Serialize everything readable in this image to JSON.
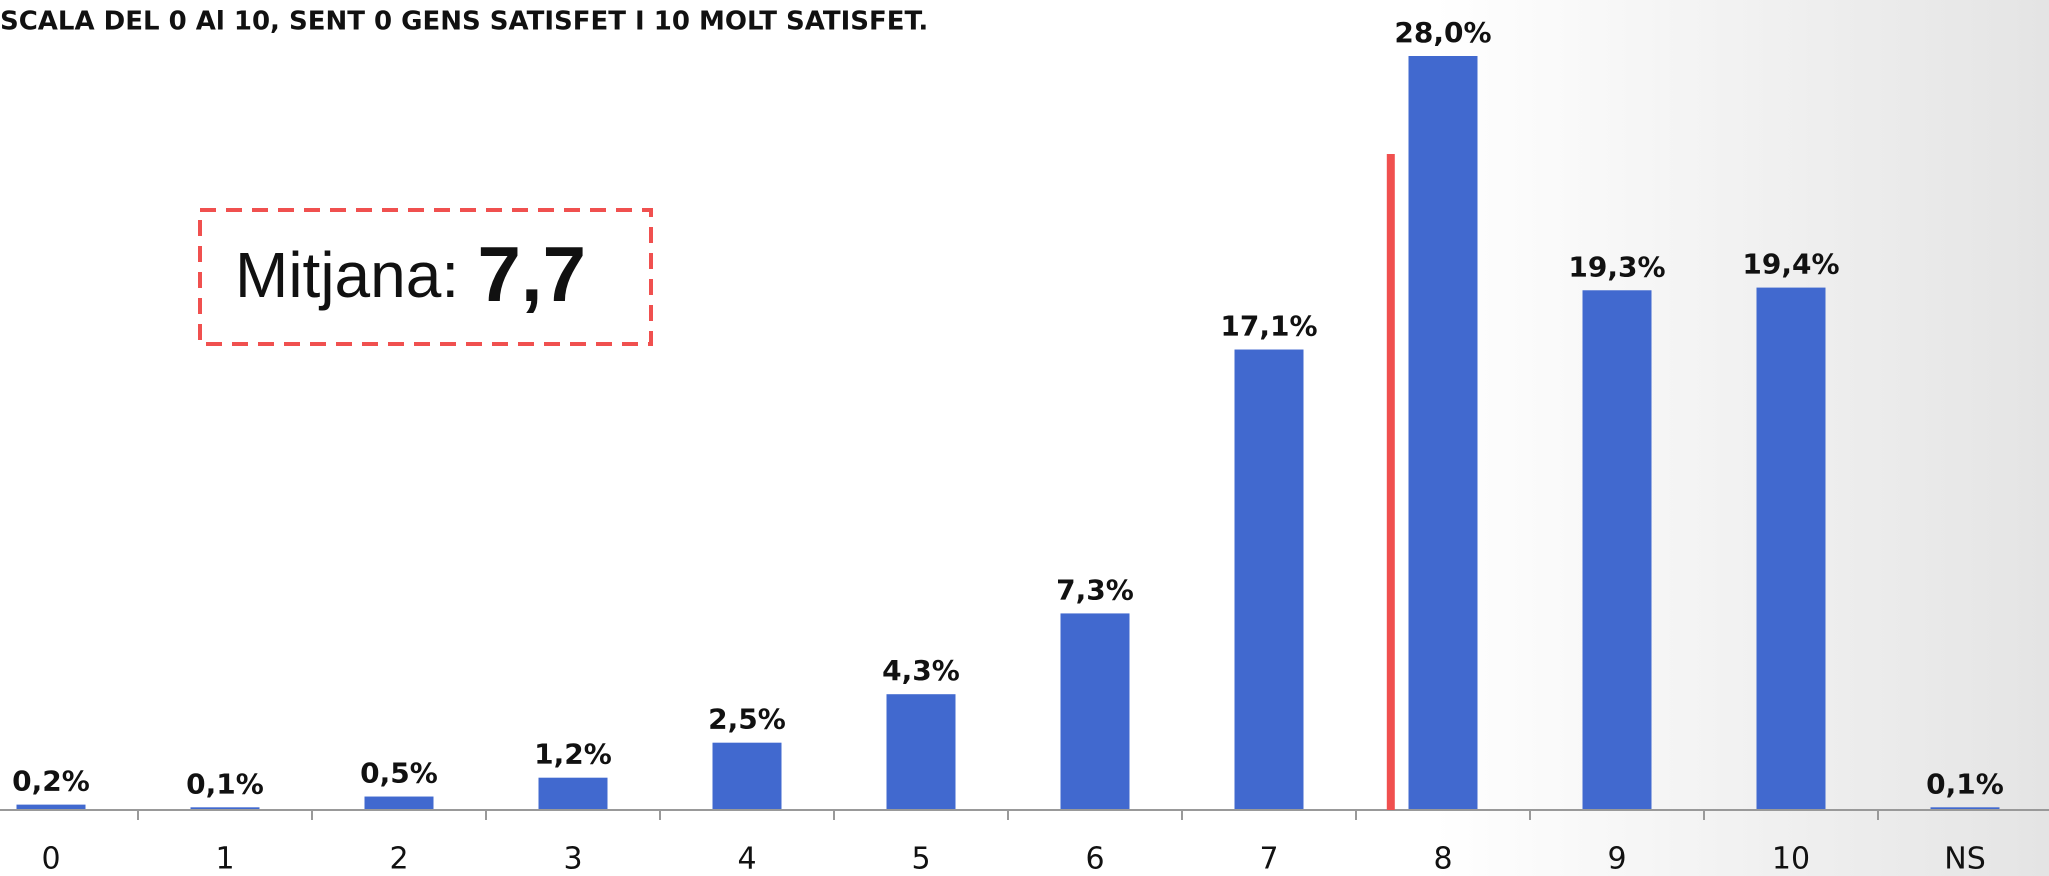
{
  "chart_data": {
    "type": "bar",
    "title": "SCALA DEL 0 Al 10, SENT 0 GENS SATISFET I 10 MOLT SATISFET.",
    "categories": [
      "0",
      "1",
      "2",
      "3",
      "4",
      "5",
      "6",
      "7",
      "8",
      "9",
      "10",
      "NS"
    ],
    "values": [
      0.2,
      0.1,
      0.5,
      1.2,
      2.5,
      4.3,
      7.3,
      17.1,
      28.0,
      19.3,
      19.4,
      0.1
    ],
    "value_labels": [
      "0,2%",
      "0,1%",
      "0,5%",
      "1,2%",
      "2,5%",
      "4,3%",
      "7,3%",
      "17,1%",
      "28,0%",
      "19,3%",
      "19,4%",
      "0,1%"
    ],
    "color": "#4169cf",
    "mean": {
      "label": "Mitjana:",
      "value": 7.7,
      "value_label": "7,7",
      "color": "#f0504f"
    }
  }
}
